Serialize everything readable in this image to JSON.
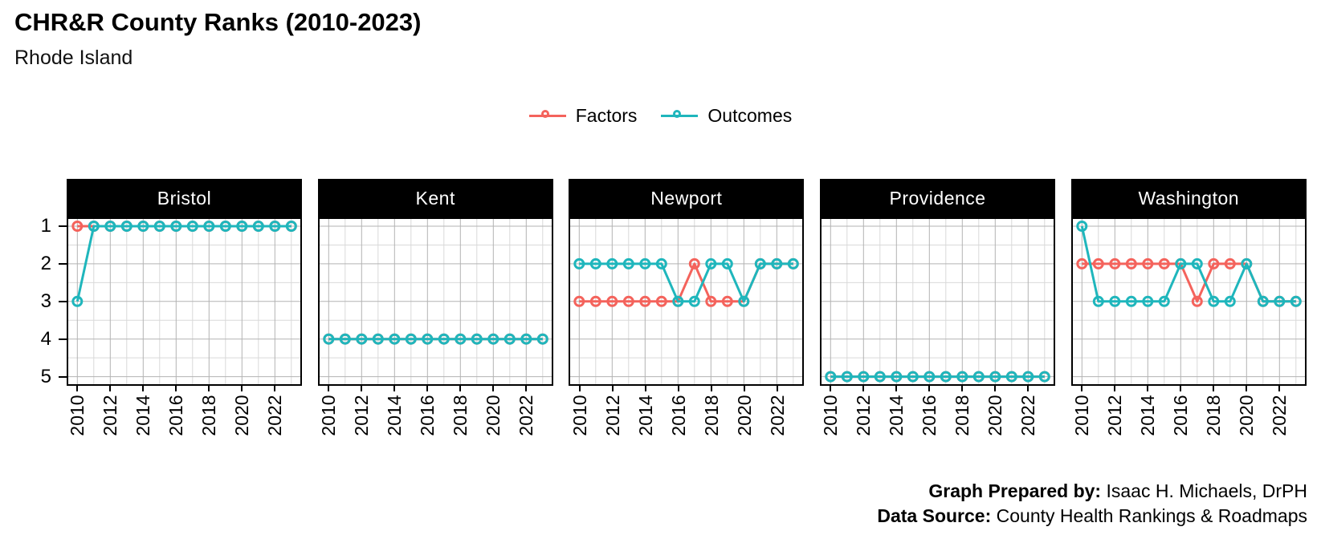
{
  "header": {
    "title": "CHR&R County Ranks (2010-2023)",
    "subtitle": "Rhode Island"
  },
  "legend": {
    "items": [
      {
        "label": "Factors",
        "color": "#F4635C"
      },
      {
        "label": "Outcomes",
        "color": "#1FB6BC"
      }
    ]
  },
  "caption": {
    "prepared_by_label": "Graph Prepared by:",
    "prepared_by_value": " Isaac H. Michaels, DrPH",
    "data_source_label": "Data Source:",
    "data_source_value": " County Health Rankings & Roadmaps"
  },
  "chart_data": {
    "type": "line",
    "title": "CHR&R County Ranks (2010-2023)",
    "subtitle": "Rhode Island",
    "x": [
      2010,
      2011,
      2012,
      2013,
      2014,
      2015,
      2016,
      2017,
      2018,
      2019,
      2020,
      2021,
      2022,
      2023
    ],
    "x_major_ticks": [
      2010,
      2012,
      2014,
      2016,
      2018,
      2020,
      2022
    ],
    "y_ticks": [
      1,
      2,
      3,
      4,
      5
    ],
    "y_label": "",
    "x_label": "",
    "y_axis_inverted": true,
    "y_range": [
      1,
      5
    ],
    "grid": "major-and-minor",
    "legend_position": "top-center",
    "series_colors": {
      "Factors": "#F4635C",
      "Outcomes": "#1FB6BC"
    },
    "grid_colors": {
      "major": "#b3b3b3",
      "minor": "#d9d9d9"
    },
    "facets": [
      {
        "name": "Bristol",
        "series": [
          {
            "name": "Factors",
            "values": [
              1,
              1,
              1,
              1,
              1,
              1,
              1,
              1,
              1,
              1,
              1,
              1,
              1,
              1
            ]
          },
          {
            "name": "Outcomes",
            "values": [
              3,
              1,
              1,
              1,
              1,
              1,
              1,
              1,
              1,
              1,
              1,
              1,
              1,
              1
            ]
          }
        ]
      },
      {
        "name": "Kent",
        "series": [
          {
            "name": "Factors",
            "values": [
              4,
              4,
              4,
              4,
              4,
              4,
              4,
              4,
              4,
              4,
              4,
              4,
              4,
              4
            ]
          },
          {
            "name": "Outcomes",
            "values": [
              4,
              4,
              4,
              4,
              4,
              4,
              4,
              4,
              4,
              4,
              4,
              4,
              4,
              4
            ]
          }
        ]
      },
      {
        "name": "Newport",
        "series": [
          {
            "name": "Factors",
            "values": [
              3,
              3,
              3,
              3,
              3,
              3,
              3,
              2,
              3,
              3,
              3,
              2,
              2,
              2
            ]
          },
          {
            "name": "Outcomes",
            "values": [
              2,
              2,
              2,
              2,
              2,
              2,
              3,
              3,
              2,
              2,
              3,
              2,
              2,
              2
            ]
          }
        ]
      },
      {
        "name": "Providence",
        "series": [
          {
            "name": "Factors",
            "values": [
              5,
              5,
              5,
              5,
              5,
              5,
              5,
              5,
              5,
              5,
              5,
              5,
              5,
              5
            ]
          },
          {
            "name": "Outcomes",
            "values": [
              5,
              5,
              5,
              5,
              5,
              5,
              5,
              5,
              5,
              5,
              5,
              5,
              5,
              5
            ]
          }
        ]
      },
      {
        "name": "Washington",
        "series": [
          {
            "name": "Factors",
            "values": [
              2,
              2,
              2,
              2,
              2,
              2,
              2,
              3,
              2,
              2,
              2,
              3,
              3,
              3
            ]
          },
          {
            "name": "Outcomes",
            "values": [
              1,
              3,
              3,
              3,
              3,
              3,
              2,
              2,
              3,
              3,
              2,
              3,
              3,
              3
            ]
          }
        ]
      }
    ]
  }
}
